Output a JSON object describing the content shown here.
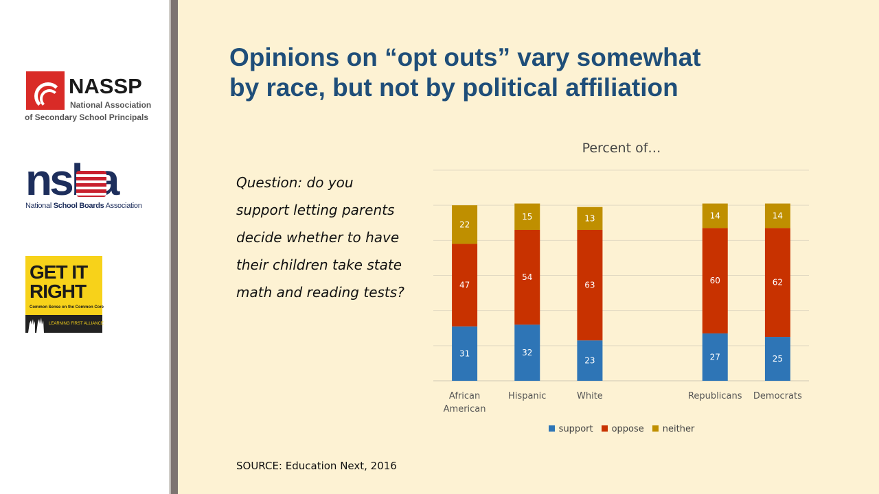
{
  "title_line1": "Opinions on “opt outs” vary somewhat",
  "title_line2": "by race, but not by political affiliation",
  "question": "Question: do you support letting parents decide whether to have their children take state math and reading tests?",
  "source": "SOURCE: Education Next, 2016",
  "logos": {
    "nassp": {
      "name": "NASSP",
      "line1": "National Association",
      "line2": "of Secondary School Principals",
      "color": "#d92b27"
    },
    "nsba": {
      "letters": "nsba",
      "sub_pre": "National ",
      "sub_bold": "School Boards",
      "sub_post": " Association"
    },
    "getitright": {
      "line1": "GET IT",
      "line2": "RIGHT",
      "sub": "Common Sense on the Common Core",
      "bottom": "LEARNING FIRST ALLIANCE",
      "color": "#f7d21a"
    }
  },
  "chart_data": {
    "type": "bar",
    "stacked": true,
    "title": "Percent of…",
    "categories": [
      [
        "African",
        "American"
      ],
      [
        "Hispanic"
      ],
      [
        "White"
      ],
      [
        ""
      ],
      [
        "Republicans"
      ],
      [
        "Democrats"
      ]
    ],
    "series": [
      {
        "name": "support",
        "color": "#2e75b6",
        "values": [
          31,
          32,
          23,
          null,
          27,
          25
        ]
      },
      {
        "name": "oppose",
        "color": "#c83200",
        "values": [
          47,
          54,
          63,
          null,
          60,
          62
        ]
      },
      {
        "name": "neither",
        "color": "#bf8f00",
        "values": [
          22,
          15,
          13,
          null,
          14,
          14
        ]
      }
    ],
    "ylim": [
      0,
      120
    ],
    "gridlines": true,
    "y_axis_labels_shown": false,
    "legend": "bottom"
  }
}
